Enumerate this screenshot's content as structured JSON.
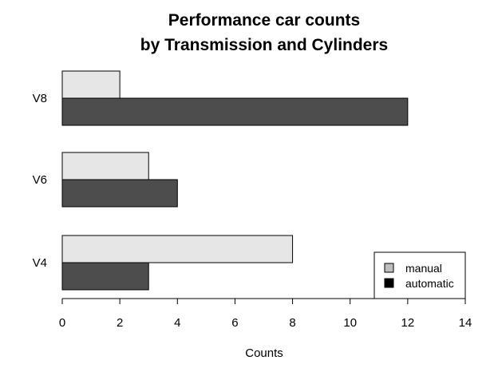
{
  "chart_data": {
    "type": "bar",
    "orientation": "horizontal",
    "title_lines": [
      "Performance car counts",
      "by Transmission and Cylinders"
    ],
    "xlabel": "Counts",
    "ylabel": "",
    "categories": [
      "V4",
      "V6",
      "V8"
    ],
    "series": [
      {
        "name": "manual",
        "values": [
          8,
          3,
          2
        ],
        "color": "#e6e6e6"
      },
      {
        "name": "automatic",
        "values": [
          3,
          4,
          12
        ],
        "color": "#4d4d4d"
      }
    ],
    "xlim": [
      0,
      14
    ],
    "xticks": [
      "0",
      "2",
      "4",
      "6",
      "8",
      "10",
      "12",
      "14"
    ],
    "grid": false,
    "legend": {
      "position": "bottom-right",
      "items": [
        {
          "label": "manual",
          "swatch_color": "#bebebe"
        },
        {
          "label": "automatic",
          "swatch_color": "#000000"
        }
      ]
    }
  }
}
